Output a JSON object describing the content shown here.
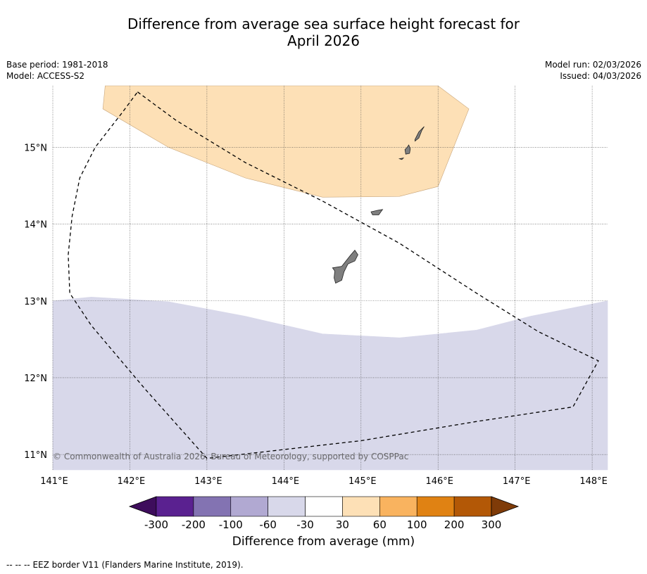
{
  "title": {
    "line1": "Difference from average sea surface height forecast for",
    "line2": "April 2026"
  },
  "meta": {
    "base_period": "Base period: 1981-2018",
    "model": "Model: ACCESS-S2",
    "model_run": "Model run: 02/03/2026",
    "issued": "Issued: 04/03/2026"
  },
  "map": {
    "lon_range": [
      141.0,
      148.2
    ],
    "lat_range": [
      10.8,
      15.8
    ],
    "lat_ticks": [
      {
        "value": 15,
        "label": "15°N"
      },
      {
        "value": 14,
        "label": "14°N"
      },
      {
        "value": 13,
        "label": "13°N"
      },
      {
        "value": 12,
        "label": "12°N"
      },
      {
        "value": 11,
        "label": "11°N"
      }
    ],
    "lon_ticks": [
      {
        "value": 141,
        "label": "141°E"
      },
      {
        "value": 142,
        "label": "142°E"
      },
      {
        "value": 143,
        "label": "143°E"
      },
      {
        "value": 144,
        "label": "144°E"
      },
      {
        "value": 145,
        "label": "145°E"
      },
      {
        "value": 146,
        "label": "146°E"
      },
      {
        "value": 147,
        "label": "147°E"
      },
      {
        "value": 148,
        "label": "148°E"
      }
    ],
    "regions": [
      {
        "name": "anomaly-30-60",
        "color": "#fde0b6",
        "stroke": "#c8a57a",
        "coords": [
          [
            141.68,
            15.8
          ],
          [
            141.65,
            15.5
          ],
          [
            142.5,
            15.0
          ],
          [
            143.5,
            14.6
          ],
          [
            144.5,
            14.35
          ],
          [
            145.5,
            14.36
          ],
          [
            146.0,
            14.49
          ],
          [
            146.4,
            15.5
          ],
          [
            146.0,
            15.8
          ]
        ]
      },
      {
        "name": "anomaly-neg60-neg30",
        "color": "#d8d8ea",
        "stroke": "#d8d8ea",
        "coords": [
          [
            141.0,
            10.8
          ],
          [
            141.0,
            13.0
          ],
          [
            141.5,
            13.05
          ],
          [
            142.5,
            12.99
          ],
          [
            143.5,
            12.8
          ],
          [
            144.5,
            12.57
          ],
          [
            145.5,
            12.52
          ],
          [
            146.5,
            12.62
          ],
          [
            147.2,
            12.8
          ],
          [
            148.2,
            13.0
          ],
          [
            148.2,
            10.8
          ]
        ]
      }
    ],
    "islands": [
      {
        "name": "guam",
        "coords": [
          [
            144.63,
            13.43
          ],
          [
            144.75,
            13.45
          ],
          [
            144.86,
            13.59
          ],
          [
            144.92,
            13.66
          ],
          [
            144.96,
            13.6
          ],
          [
            144.92,
            13.52
          ],
          [
            144.83,
            13.48
          ],
          [
            144.78,
            13.38
          ],
          [
            144.75,
            13.27
          ],
          [
            144.67,
            13.23
          ],
          [
            144.65,
            13.3
          ],
          [
            144.66,
            13.39
          ]
        ]
      },
      {
        "name": "rota",
        "coords": [
          [
            145.13,
            14.16
          ],
          [
            145.22,
            14.18
          ],
          [
            145.28,
            14.19
          ],
          [
            145.23,
            14.12
          ],
          [
            145.15,
            14.12
          ]
        ]
      },
      {
        "name": "tinian",
        "coords": [
          [
            145.6,
            15.0
          ],
          [
            145.57,
            14.97
          ],
          [
            145.58,
            14.91
          ],
          [
            145.63,
            14.92
          ],
          [
            145.64,
            14.98
          ],
          [
            145.62,
            15.03
          ]
        ]
      },
      {
        "name": "saipan",
        "coords": [
          [
            145.7,
            15.1
          ],
          [
            145.75,
            15.2
          ],
          [
            145.82,
            15.27
          ],
          [
            145.79,
            15.22
          ],
          [
            145.75,
            15.12
          ],
          [
            145.7,
            15.08
          ]
        ]
      },
      {
        "name": "aguijan",
        "coords": [
          [
            145.5,
            14.85
          ],
          [
            145.55,
            14.86
          ],
          [
            145.53,
            14.84
          ]
        ]
      }
    ],
    "eez_border": [
      [
        142.1,
        15.72
      ],
      [
        142.6,
        15.35
      ],
      [
        143.5,
        14.8
      ],
      [
        144.5,
        14.3
      ],
      [
        145.5,
        13.75
      ],
      [
        146.5,
        13.1
      ],
      [
        147.3,
        12.6
      ],
      [
        148.08,
        12.22
      ],
      [
        147.75,
        11.62
      ],
      [
        146.5,
        11.43
      ],
      [
        145.0,
        11.18
      ],
      [
        143.0,
        10.95
      ],
      [
        142.2,
        11.85
      ],
      [
        141.5,
        12.68
      ],
      [
        141.22,
        13.1
      ],
      [
        141.2,
        13.6
      ],
      [
        141.25,
        14.1
      ],
      [
        141.35,
        14.6
      ],
      [
        141.55,
        15.0
      ],
      [
        141.9,
        15.45
      ],
      [
        142.1,
        15.72
      ]
    ],
    "copyright": "© Commonwealth of Australia 2026, Bureau of Meteorology, supported by COSPPac"
  },
  "colorbar": {
    "colors": [
      "#3e0d5c",
      "#5a2190",
      "#8373b2",
      "#b1a9d2",
      "#d8d8ea",
      "#ffffff",
      "#fde0b6",
      "#f9b35f",
      "#e08213",
      "#b35806",
      "#7f3b08"
    ],
    "tick_labels": [
      "-300",
      "-200",
      "-100",
      "-60",
      "-30",
      "30",
      "60",
      "100",
      "200",
      "300"
    ],
    "label": "Difference from average (mm)"
  },
  "footnote": {
    "marker": "--  --  --",
    "text": "EEZ border V11 (Flanders Marine Institute, 2019)."
  }
}
